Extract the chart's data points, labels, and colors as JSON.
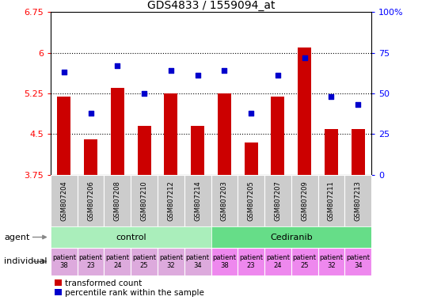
{
  "title": "GDS4833 / 1559094_at",
  "samples": [
    "GSM807204",
    "GSM807206",
    "GSM807208",
    "GSM807210",
    "GSM807212",
    "GSM807214",
    "GSM807203",
    "GSM807205",
    "GSM807207",
    "GSM807209",
    "GSM807211",
    "GSM807213"
  ],
  "red_values": [
    5.2,
    4.4,
    5.35,
    4.65,
    5.25,
    4.65,
    5.25,
    4.35,
    5.2,
    6.1,
    4.6,
    4.6
  ],
  "blue_values": [
    63,
    38,
    67,
    50,
    64,
    61,
    64,
    38,
    61,
    72,
    48,
    43
  ],
  "ylim": [
    3.75,
    6.75
  ],
  "y2lim": [
    0,
    100
  ],
  "yticks": [
    3.75,
    4.5,
    5.25,
    6.0,
    6.75
  ],
  "ytick_labels": [
    "3.75",
    "4.5",
    "5.25",
    "6",
    "6.75"
  ],
  "y2ticks": [
    0,
    25,
    50,
    75,
    100
  ],
  "y2tick_labels": [
    "0",
    "25",
    "50",
    "75",
    "100%"
  ],
  "agent_control_count": 6,
  "agent_cediranib_count": 6,
  "agent_control_label": "control",
  "agent_cediranib_label": "Cediranib",
  "individuals": [
    "patient\n38",
    "patient\n23",
    "patient\n24",
    "patient\n25",
    "patient\n32",
    "patient\n34",
    "patient\n38",
    "patient\n23",
    "patient\n24",
    "patient\n25",
    "patient\n32",
    "patient\n34"
  ],
  "agent_row_label": "agent",
  "individual_row_label": "individual",
  "legend_red": "transformed count",
  "legend_blue": "percentile rank within the sample",
  "bar_color": "#cc0000",
  "dot_color": "#0000cc",
  "control_bg": "#aaeebb",
  "cediranib_bg": "#66dd88",
  "individual_control_bg": "#ddaadd",
  "individual_cediranib_bg": "#ee88ee",
  "xticklabel_bg": "#cccccc",
  "grid_color": "#000000"
}
